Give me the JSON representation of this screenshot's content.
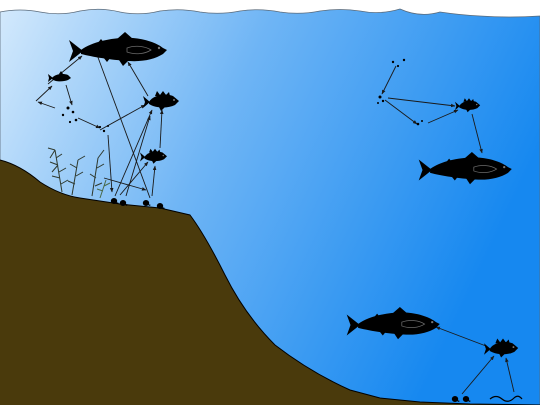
{
  "diagram": {
    "type": "aquatic-food-web",
    "colors": {
      "sky": "#ffffff",
      "water_light": "#cfe6fb",
      "water_deep": "#1e8ef2",
      "lake_bed": "#4a3a0c",
      "organism": "#000000",
      "arrow": "#1a1a1a",
      "plant": "#2f3a2f"
    },
    "organisms": [
      {
        "name": "large-salmonid",
        "icon": "salmon-silhouette"
      },
      {
        "name": "yellow-perch",
        "icon": "perch-silhouette"
      },
      {
        "name": "small-sunfish",
        "icon": "perch-silhouette"
      },
      {
        "name": "minnow",
        "icon": "small-fish-silhouette"
      },
      {
        "name": "zooplankton",
        "icon": "plankton-dots"
      },
      {
        "name": "snails",
        "icon": "snail-shapes"
      },
      {
        "name": "aquatic-plants",
        "icon": "plant-sprigs"
      },
      {
        "name": "pelagic-salmonid",
        "icon": "salmon-silhouette"
      },
      {
        "name": "pelagic-perch",
        "icon": "perch-silhouette"
      },
      {
        "name": "benthic-salmonid",
        "icon": "salmon-silhouette"
      },
      {
        "name": "benthic-perch",
        "icon": "perch-silhouette"
      },
      {
        "name": "benthic-invertebrates",
        "icon": "snail-shapes"
      },
      {
        "name": "worm",
        "icon": "worm-shape"
      }
    ]
  }
}
